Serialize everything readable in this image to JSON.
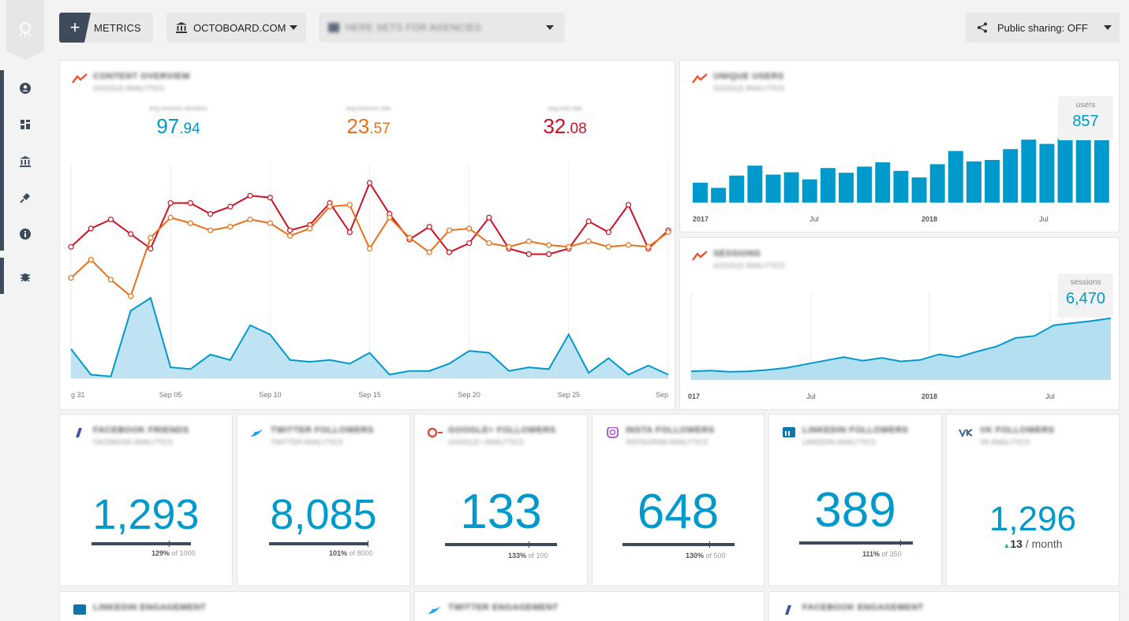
{
  "topbar": {
    "metrics_label": "METRICS",
    "org_label": "OCTOBOARD.COM",
    "datasource_label": "HERE SETS FOR AGENCIES",
    "share_label": "Public sharing: OFF"
  },
  "sidebar": {
    "items": [
      "user-icon",
      "dashboard-icon",
      "bank-icon",
      "plug-icon",
      "info-icon",
      "bug-icon"
    ]
  },
  "overview": {
    "title": "CONTENT OVERVIEW",
    "subtitle": "GOOGLE ANALYTICS",
    "kpis": [
      {
        "label": "avg.session duration",
        "int": "97",
        "dec": ".94",
        "color": "#0099cc"
      },
      {
        "label": "avg.bounce rate",
        "int": "23",
        "dec": ".57",
        "color": "#e8701a"
      },
      {
        "label": "avg.exit rate",
        "int": "32",
        "dec": ".08",
        "color": "#cc1122"
      }
    ],
    "x_ticks": [
      "g 31",
      "Sep 05",
      "Sep 10",
      "Sep 15",
      "Sep 20",
      "Sep 25",
      "Sep"
    ]
  },
  "unique_users": {
    "title": "UNIQUE USERS",
    "subtitle": "GOOGLE ANALYTICS",
    "tooltip_label": "users",
    "tooltip_value": "857",
    "x_ticks": [
      "2017",
      "Jul",
      "2018",
      "Jul"
    ]
  },
  "sessions": {
    "title": "SESSIONS",
    "subtitle": "GOOGLE ANALYTICS",
    "tooltip_label": "sessions",
    "tooltip_value": "6,470",
    "x_ticks": [
      "017",
      "Jul",
      "2018",
      "Jul"
    ]
  },
  "tiles": [
    {
      "title": "FACEBOOK FRIENDS",
      "subtitle": "FACEBOOK ANALYTICS",
      "value": "1,293",
      "pct": "129%",
      "goal": "of 1000"
    },
    {
      "title": "TWITTER FOLLOWERS",
      "subtitle": "TWITTER ANALYTICS",
      "value": "8,085",
      "pct": "101%",
      "goal": "of 8000"
    },
    {
      "title": "GOOGLE+ FOLLOWERS",
      "subtitle": "GOOGLE+ ANALYTICS",
      "value": "133",
      "pct": "133%",
      "goal": "of 100"
    },
    {
      "title": "INSTA FOLLOWERS",
      "subtitle": "INSTAGRAM ANALYTICS",
      "value": "648",
      "pct": "130%",
      "goal": "of 500"
    },
    {
      "title": "LINKEDIN FOLLOWERS",
      "subtitle": "LINKEDIN ANALYTICS",
      "value": "389",
      "pct": "111%",
      "goal": "of 350"
    },
    {
      "title": "VK FOLLOWERS",
      "subtitle": "VK ANALYTICS",
      "value": "1,296",
      "delta": "13",
      "period": "/ month"
    }
  ],
  "bottom_tiles": [
    {
      "title": "LINKEDIN ENGAGEMENT"
    },
    {
      "title": "TWITTER ENGAGEMENT"
    },
    {
      "title": "FACEBOOK ENGAGEMENT"
    }
  ],
  "chart_data": [
    {
      "type": "line",
      "title": "CONTENT OVERVIEW",
      "x": [
        "Aug 31",
        "Sep 01",
        "Sep 02",
        "Sep 03",
        "Sep 04",
        "Sep 05",
        "Sep 06",
        "Sep 07",
        "Sep 08",
        "Sep 09",
        "Sep 10",
        "Sep 11",
        "Sep 12",
        "Sep 13",
        "Sep 14",
        "Sep 15",
        "Sep 16",
        "Sep 17",
        "Sep 18",
        "Sep 19",
        "Sep 20",
        "Sep 21",
        "Sep 22",
        "Sep 23",
        "Sep 24",
        "Sep 25",
        "Sep 26",
        "Sep 27",
        "Sep 28",
        "Sep 29",
        "Sep 30"
      ],
      "series": [
        {
          "name": "avg.exit rate",
          "color": "#cc1122",
          "values": [
            72,
            82,
            87,
            79,
            71,
            96,
            96,
            90,
            94,
            100,
            99,
            81,
            84,
            96,
            80,
            107,
            90,
            76,
            83,
            69,
            74,
            88,
            71,
            68,
            68,
            71,
            86,
            80,
            95,
            71,
            81
          ]
        },
        {
          "name": "avg.bounce rate",
          "color": "#e8701a",
          "values": [
            55,
            65,
            54,
            45,
            77,
            88,
            85,
            81,
            83,
            87,
            85,
            78,
            82,
            94,
            95,
            71,
            88,
            77,
            69,
            81,
            82,
            74,
            72,
            75,
            73,
            72,
            75,
            72,
            73,
            72,
            80
          ]
        },
        {
          "name": "avg.session duration",
          "color": "#0099cc",
          "values": [
            16,
            2,
            1,
            37,
            44,
            6,
            5,
            13,
            10,
            29,
            24,
            10,
            9,
            10,
            8,
            14,
            2,
            4,
            4,
            8,
            15,
            14,
            4,
            6,
            5,
            24,
            3,
            11,
            2,
            7,
            2
          ]
        }
      ],
      "ylim": [
        0,
        120
      ]
    },
    {
      "type": "bar",
      "title": "UNIQUE USERS",
      "categories": [
        "2017-01",
        "2017-02",
        "2017-03",
        "2017-04",
        "2017-05",
        "2017-06",
        "2017-07",
        "2017-08",
        "2017-09",
        "2017-10",
        "2017-11",
        "2017-12",
        "2018-01",
        "2018-02",
        "2018-03",
        "2018-04",
        "2018-05",
        "2018-06",
        "2018-07",
        "2018-08",
        "2018-09",
        "2018-10",
        "2018-11"
      ],
      "values": [
        210,
        155,
        285,
        390,
        295,
        320,
        245,
        365,
        315,
        380,
        425,
        335,
        265,
        405,
        545,
        435,
        450,
        565,
        665,
        620,
        690,
        820,
        857
      ],
      "ylim": [
        0,
        1000
      ]
    },
    {
      "type": "area",
      "title": "SESSIONS",
      "categories": [
        "2017-01",
        "2017-02",
        "2017-03",
        "2017-04",
        "2017-05",
        "2017-06",
        "2017-07",
        "2017-08",
        "2017-09",
        "2017-10",
        "2017-11",
        "2017-12",
        "2018-01",
        "2018-02",
        "2018-03",
        "2018-04",
        "2018-05",
        "2018-06",
        "2018-07",
        "2018-08",
        "2018-09",
        "2018-10",
        "2018-11"
      ],
      "values": [
        1200,
        1300,
        1150,
        1200,
        1400,
        1700,
        2200,
        2700,
        3200,
        2700,
        3100,
        2600,
        2800,
        3600,
        3200,
        4000,
        4700,
        5900,
        6200,
        7700,
        8000,
        8300,
        8700
      ],
      "ylim": [
        0,
        12000
      ]
    }
  ]
}
